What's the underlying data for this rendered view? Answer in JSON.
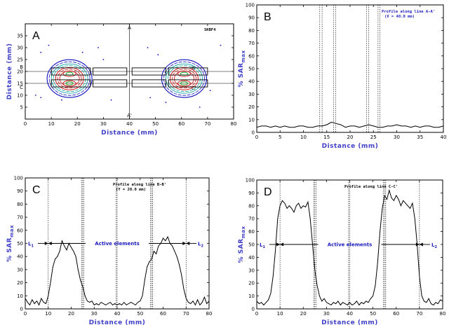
{
  "chart_data": [
    {
      "id": "A",
      "type": "contour",
      "panel_label": "A",
      "code_label": "SKBF4",
      "xlabel": "Distance (mm)",
      "ylabel": "Distance (mm)",
      "xlim": [
        0,
        80
      ],
      "ylim": [
        0,
        40
      ],
      "xticks": [
        0,
        10,
        20,
        30,
        40,
        50,
        60,
        70,
        80
      ],
      "yticks": [
        5,
        10,
        15,
        20,
        25,
        30,
        35
      ],
      "line_labels": [
        "A",
        "A'",
        "B",
        "B'",
        "C",
        "C'"
      ],
      "line_positions": {
        "A_x": 40,
        "B_y": 20,
        "C_y": 15
      },
      "contour_colors": [
        "#1010c0",
        "#10a0a0",
        "#d02020",
        "#10a010",
        "#000000"
      ],
      "hotspots": [
        {
          "x": 17,
          "y": 19
        },
        {
          "x": 17,
          "y": 15
        },
        {
          "x": 61,
          "y": 19
        },
        {
          "x": 61,
          "y": 15
        }
      ],
      "element_boxes": [
        {
          "x0": 10,
          "x1": 25,
          "y0": 13.5,
          "y1": 16.5
        },
        {
          "x0": 10,
          "x1": 25,
          "y0": 18.5,
          "y1": 21.5
        },
        {
          "x0": 26,
          "x1": 39,
          "y0": 13.5,
          "y1": 16.5
        },
        {
          "x0": 26,
          "x1": 39,
          "y0": 18.5,
          "y1": 21.5
        },
        {
          "x0": 41,
          "x1": 54,
          "y0": 13.5,
          "y1": 16.5
        },
        {
          "x0": 41,
          "x1": 54,
          "y0": 18.5,
          "y1": 21.5
        },
        {
          "x0": 55,
          "x1": 70,
          "y0": 13.5,
          "y1": 16.5
        },
        {
          "x0": 55,
          "x1": 70,
          "y0": 18.5,
          "y1": 21.5
        }
      ]
    },
    {
      "id": "B",
      "type": "line",
      "panel_label": "B",
      "note_lines": [
        "Profile along line A-A'",
        "(X = 40.0 mm)"
      ],
      "xlabel": "Distance (mm)",
      "ylabel": "% SAR",
      "ylabel_sub": "max",
      "xlim": [
        0,
        40
      ],
      "ylim": [
        0,
        100
      ],
      "xticks": [
        0,
        5,
        10,
        15,
        20,
        25,
        30,
        35,
        40
      ],
      "yticks": [
        0,
        10,
        20,
        30,
        40,
        50,
        60,
        70,
        80,
        90,
        100
      ],
      "dashed_x": [
        13.5,
        14,
        16.5,
        16.9,
        23.5,
        24,
        26,
        26.4
      ],
      "x": [
        0,
        1,
        2,
        3,
        4,
        5,
        6,
        7,
        8,
        9,
        10,
        11,
        12,
        13,
        14,
        15,
        16,
        17,
        18,
        19,
        20,
        21,
        22,
        23,
        24,
        25,
        26,
        27,
        28,
        29,
        30,
        31,
        32,
        33,
        34,
        35,
        36,
        37,
        38,
        39,
        40
      ],
      "y": [
        4,
        5,
        5,
        4,
        5,
        4,
        5,
        4,
        4,
        5,
        5,
        4,
        4,
        5,
        5,
        6,
        8,
        7,
        6,
        4,
        5,
        5,
        4,
        5,
        6,
        5,
        4,
        4,
        5,
        5,
        6,
        5,
        5,
        4,
        5,
        4,
        5,
        5,
        4,
        4,
        5
      ]
    },
    {
      "id": "C",
      "type": "line",
      "panel_label": "C",
      "note_lines": [
        "Profile along line B-B'",
        "(Y = 20.0 mm)"
      ],
      "region_left": "L",
      "region_left_sub": "1",
      "region_right": "L",
      "region_right_sub": "2",
      "active_label": "Active elements",
      "arrow_y": 50,
      "xlabel": "Distance (mm)",
      "ylabel": "% SAR",
      "ylabel_sub": "max",
      "xlim": [
        0,
        80
      ],
      "ylim": [
        0,
        100
      ],
      "xticks": [
        0,
        10,
        20,
        30,
        40,
        50,
        60,
        70,
        80
      ],
      "yticks": [
        0,
        10,
        20,
        30,
        40,
        50,
        60,
        70,
        80,
        90,
        100
      ],
      "dashed_x": [
        10,
        24.5,
        25,
        25.5,
        39.5,
        40,
        54.5,
        55,
        55.5,
        70
      ],
      "x": [
        0,
        1,
        2,
        3,
        4,
        5,
        6,
        7,
        8,
        9,
        10,
        11,
        12,
        13,
        14,
        15,
        16,
        17,
        18,
        19,
        20,
        21,
        22,
        23,
        24,
        25,
        26,
        27,
        28,
        29,
        30,
        31,
        32,
        33,
        34,
        35,
        36,
        37,
        38,
        39,
        40,
        41,
        42,
        43,
        44,
        45,
        46,
        47,
        48,
        49,
        50,
        51,
        52,
        53,
        54,
        55,
        56,
        57,
        58,
        59,
        60,
        61,
        62,
        63,
        64,
        65,
        66,
        67,
        68,
        69,
        70,
        71,
        72,
        73,
        74,
        75,
        76,
        77,
        78,
        79,
        80
      ],
      "y": [
        8,
        5,
        3,
        7,
        4,
        6,
        3,
        8,
        5,
        4,
        10,
        20,
        32,
        38,
        40,
        44,
        52,
        48,
        45,
        50,
        47,
        44,
        40,
        30,
        22,
        17,
        10,
        6,
        5,
        6,
        3,
        4,
        3,
        5,
        4,
        3,
        4,
        5,
        3,
        4,
        3,
        4,
        3,
        5,
        3,
        4,
        5,
        4,
        3,
        5,
        6,
        10,
        22,
        32,
        36,
        38,
        44,
        42,
        48,
        50,
        54,
        52,
        55,
        50,
        48,
        44,
        40,
        34,
        26,
        15,
        8,
        5,
        4,
        6,
        3,
        7,
        3,
        5,
        9,
        4,
        6
      ]
    },
    {
      "id": "D",
      "type": "line",
      "panel_label": "D",
      "note_lines": [
        "Profile along line C-C'"
      ],
      "region_left": "L",
      "region_left_sub": "1",
      "region_right": "L",
      "region_right_sub": "2",
      "active_label": "Active elements",
      "arrow_y": 50,
      "xlabel": "Distance (mm)",
      "ylabel": "% SAR",
      "ylabel_sub": "max",
      "xlim": [
        0,
        80
      ],
      "ylim": [
        0,
        100
      ],
      "xticks": [
        0,
        10,
        20,
        30,
        40,
        50,
        60,
        70,
        80
      ],
      "yticks": [
        0,
        10,
        20,
        30,
        40,
        50,
        60,
        70,
        80,
        90,
        100
      ],
      "dashed_x": [
        10,
        24.5,
        25,
        25.5,
        39.5,
        40,
        54.5,
        55,
        55.5,
        70
      ],
      "x": [
        0,
        1,
        2,
        3,
        4,
        5,
        6,
        7,
        8,
        9,
        10,
        11,
        12,
        13,
        14,
        15,
        16,
        17,
        18,
        19,
        20,
        21,
        22,
        23,
        24,
        25,
        26,
        27,
        28,
        29,
        30,
        31,
        32,
        33,
        34,
        35,
        36,
        37,
        38,
        39,
        40,
        41,
        42,
        43,
        44,
        45,
        46,
        47,
        48,
        49,
        50,
        51,
        52,
        53,
        54,
        55,
        56,
        57,
        58,
        59,
        60,
        61,
        62,
        63,
        64,
        65,
        66,
        67,
        68,
        69,
        70,
        71,
        72,
        73,
        74,
        75,
        76,
        77,
        78,
        79,
        80
      ],
      "y": [
        6,
        4,
        5,
        3,
        5,
        7,
        12,
        25,
        45,
        70,
        80,
        84,
        82,
        78,
        80,
        78,
        75,
        80,
        82,
        78,
        80,
        79,
        83,
        70,
        50,
        30,
        18,
        10,
        6,
        8,
        5,
        4,
        3,
        5,
        4,
        6,
        3,
        5,
        4,
        3,
        5,
        3,
        4,
        6,
        3,
        5,
        4,
        6,
        5,
        8,
        10,
        18,
        36,
        60,
        78,
        88,
        85,
        92,
        86,
        84,
        88,
        85,
        80,
        84,
        82,
        80,
        78,
        82,
        70,
        50,
        25,
        10,
        6,
        5,
        8,
        4,
        3,
        5,
        4,
        7,
        6
      ]
    }
  ]
}
